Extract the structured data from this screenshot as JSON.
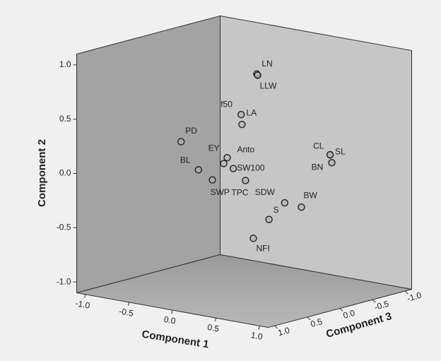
{
  "chart_data": {
    "type": "scatter3d",
    "x_label": "Component 1",
    "y_label": "Component 2",
    "z_label": "Component 3",
    "xlim": [
      -1.1,
      1.1
    ],
    "ylim": [
      -1.1,
      1.1
    ],
    "zlim": [
      -1.1,
      1.1
    ],
    "xticks": [
      {
        "value": -1,
        "label": "-1.0"
      },
      {
        "value": -0.5,
        "label": "-0.5"
      },
      {
        "value": 0,
        "label": "0.0"
      },
      {
        "value": 0.5,
        "label": "0.5"
      },
      {
        "value": 1,
        "label": "1.0"
      }
    ],
    "yticks": [
      {
        "value": -1,
        "label": "-1.0"
      },
      {
        "value": -0.5,
        "label": "-0.5"
      },
      {
        "value": 0,
        "label": "0.0"
      },
      {
        "value": 0.5,
        "label": "0.5"
      },
      {
        "value": 1,
        "label": "1.0"
      }
    ],
    "zticks": [
      {
        "value": -1,
        "label": "-1.0"
      },
      {
        "value": -0.5,
        "label": "-0.5"
      },
      {
        "value": 0,
        "label": "0.0"
      },
      {
        "value": 0.5,
        "label": "0.5"
      },
      {
        "value": 1,
        "label": "1.0"
      }
    ],
    "points": [
      {
        "label": "LN",
        "x": 0.31,
        "y": 0.98,
        "z": 0.22
      },
      {
        "label": "LLW",
        "x": 0.32,
        "y": 0.97,
        "z": 0.22
      },
      {
        "label": "f50",
        "x": 0.13,
        "y": 0.58,
        "z": 0.22
      },
      {
        "label": "LA",
        "x": 0.14,
        "y": 0.49,
        "z": 0.22
      },
      {
        "label": "PD",
        "x": -0.56,
        "y": 0.23,
        "z": 0.22
      },
      {
        "label": "Anto",
        "x": -0.03,
        "y": 0.16,
        "z": 0.22
      },
      {
        "label": "EY",
        "x": -0.07,
        "y": 0.1,
        "z": 0.22
      },
      {
        "label": "SW100",
        "x": 0.04,
        "y": 0.07,
        "z": 0.22
      },
      {
        "label": "BL",
        "x": -0.36,
        "y": 0.0,
        "z": 0.22
      },
      {
        "label": "SWP",
        "x": -0.2,
        "y": -0.07,
        "z": 0.22
      },
      {
        "label": "TPC",
        "x": 0.18,
        "y": -0.02,
        "z": 0.22
      },
      {
        "label": "SDW",
        "x": 0.63,
        "y": -0.16,
        "z": 0.22
      },
      {
        "label": "S",
        "x": 0.45,
        "y": -0.34,
        "z": 0.22
      },
      {
        "label": "NFI",
        "x": 0.27,
        "y": -0.54,
        "z": 0.22
      },
      {
        "label": "BW",
        "x": 0.41,
        "y": -0.32,
        "z": -0.33
      },
      {
        "label": "CL",
        "x": 0.74,
        "y": 0.21,
        "z": -0.33
      },
      {
        "label": "SL",
        "x": 0.74,
        "y": 0.21,
        "z": -0.33
      },
      {
        "label": "BN",
        "x": 0.76,
        "y": 0.14,
        "z": -0.33
      }
    ]
  }
}
